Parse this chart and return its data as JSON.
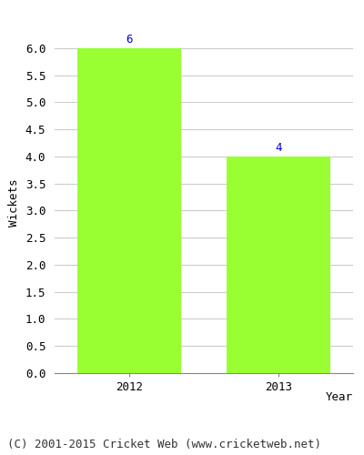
{
  "categories": [
    "2012",
    "2013"
  ],
  "values": [
    6,
    4
  ],
  "bar_color": "#99ff33",
  "bar_width": 0.7,
  "xlabel": "Year",
  "ylabel": "Wickets",
  "ylim": [
    0,
    6.3
  ],
  "yticks": [
    0.0,
    0.5,
    1.0,
    1.5,
    2.0,
    2.5,
    3.0,
    3.5,
    4.0,
    4.5,
    5.0,
    5.5,
    6.0
  ],
  "annotation_color": "#0000cc",
  "annotation_fontsize": 9,
  "tick_fontsize": 9,
  "footer_text": "(C) 2001-2015 Cricket Web (www.cricketweb.net)",
  "footer_fontsize": 9,
  "background_color": "#ffffff",
  "grid_color": "#cccccc"
}
